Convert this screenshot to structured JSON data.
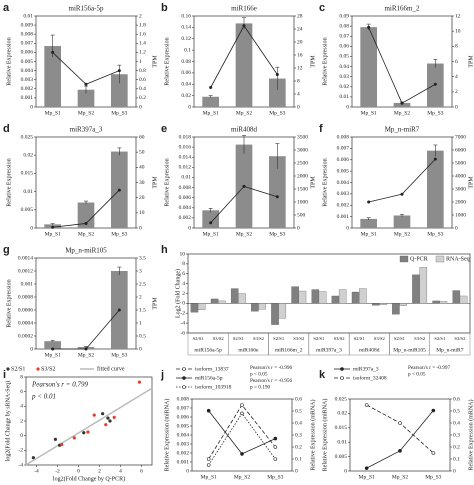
{
  "chart_data": [
    {
      "type": "combo",
      "label": "a",
      "title": "miR156a-5p",
      "ylabel": "Relative Expression",
      "y2label": "TPM",
      "categories": [
        "Mp_S1",
        "Mp_S2",
        "Mp_S3"
      ],
      "bars": {
        "values": [
          0.0067,
          0.0019,
          0.0036
        ],
        "errors": [
          0.0012,
          0.0004,
          0.001
        ],
        "color": "#8c8c8c"
      },
      "line": {
        "values": [
          1.2,
          0.5,
          0.8
        ],
        "color": "#222222",
        "axis": "y2"
      },
      "ylim": [
        0,
        0.01
      ],
      "yticks": [
        0,
        0.001,
        0.002,
        0.003,
        0.004,
        0.005,
        0.006,
        0.007,
        0.008,
        0.009,
        0.01
      ],
      "y2lim": [
        0,
        2
      ],
      "y2ticks": [
        0,
        0.2,
        0.4,
        0.6,
        0.8,
        1,
        1.2,
        1.4,
        1.6,
        1.8,
        2
      ]
    },
    {
      "type": "combo",
      "label": "b",
      "title": "miR166e",
      "ylabel": "Relative Expression",
      "y2label": "TPM",
      "categories": [
        "Mp_S1",
        "Mp_S2",
        "Mp_S3"
      ],
      "bars": {
        "values": [
          0.018,
          0.147,
          0.05
        ],
        "errors": [
          0.002,
          0.01,
          0.02
        ],
        "color": "#8c8c8c"
      },
      "line": {
        "values": [
          6,
          25,
          10
        ],
        "color": "#222222",
        "axis": "y2"
      },
      "ylim": [
        0,
        0.16
      ],
      "yticks": [
        0,
        0.02,
        0.04,
        0.06,
        0.08,
        0.1,
        0.12,
        0.14,
        0.16
      ],
      "y2lim": [
        0,
        28
      ],
      "y2ticks": [
        0,
        4,
        8,
        12,
        16,
        20,
        24,
        28
      ]
    },
    {
      "type": "combo",
      "label": "c",
      "title": "miR166m_2",
      "ylabel": "Relative Expression",
      "y2label": "TPM",
      "categories": [
        "Mp_S1",
        "Mp_S2",
        "Mp_S3"
      ],
      "bars": {
        "values": [
          0.079,
          0.004,
          0.043
        ],
        "errors": [
          0.003,
          0.001,
          0.004
        ],
        "color": "#8c8c8c"
      },
      "line": {
        "values": [
          10.5,
          0.5,
          3
        ],
        "color": "#222222",
        "axis": "y2"
      },
      "ylim": [
        0,
        0.09
      ],
      "yticks": [
        0,
        0.01,
        0.02,
        0.03,
        0.04,
        0.05,
        0.06,
        0.07,
        0.08,
        0.09
      ],
      "y2lim": [
        0,
        12
      ],
      "y2ticks": [
        0,
        2,
        4,
        6,
        8,
        10,
        12
      ]
    },
    {
      "type": "combo",
      "label": "d",
      "title": "miR397a_3",
      "ylabel": "Relative Expression",
      "y2label": "TPM",
      "categories": [
        "Mp_S1",
        "Mp_S2",
        "Mp_S3"
      ],
      "bars": {
        "values": [
          0.001,
          0.007,
          0.021
        ],
        "errors": [
          0.0002,
          0.0004,
          0.001
        ],
        "color": "#8c8c8c"
      },
      "line": {
        "values": [
          0.5,
          3,
          25
        ],
        "color": "#222222",
        "axis": "y2"
      },
      "ylim": [
        0,
        0.025
      ],
      "yticks": [
        0,
        0.005,
        0.01,
        0.015,
        0.02,
        0.025
      ],
      "y2lim": [
        0,
        60
      ],
      "y2ticks": [
        0,
        10,
        20,
        30,
        40,
        50,
        60
      ]
    },
    {
      "type": "combo",
      "label": "e",
      "title": "miR408d",
      "ylabel": "Relative Expression",
      "y2label": "TPM",
      "categories": [
        "Mp_S1",
        "Mp_S2",
        "Mp_S3"
      ],
      "bars": {
        "values": [
          0.0035,
          0.0165,
          0.0142
        ],
        "errors": [
          0.0004,
          0.0018,
          0.0025
        ],
        "color": "#8c8c8c"
      },
      "line": {
        "values": [
          200,
          1600,
          1200
        ],
        "color": "#222222",
        "axis": "y2"
      },
      "ylim": [
        0,
        0.018
      ],
      "yticks": [
        0,
        0.002,
        0.004,
        0.006,
        0.008,
        0.01,
        0.012,
        0.014,
        0.016,
        0.018
      ],
      "y2lim": [
        0,
        3500
      ],
      "y2ticks": [
        0,
        500,
        1000,
        1500,
        2000,
        2500,
        3000,
        3500
      ]
    },
    {
      "type": "combo",
      "label": "f",
      "title": "Mp_n-miR7",
      "ylabel": "Relative Expression",
      "y2label": "TPM",
      "categories": [
        "Mp_S1",
        "Mp_S2",
        "Mp_S3"
      ],
      "bars": {
        "values": [
          0.0008,
          0.0011,
          0.0068
        ],
        "errors": [
          0.0001,
          0.0001,
          0.0005
        ],
        "color": "#8c8c8c"
      },
      "line": {
        "values": [
          2000,
          2600,
          5300
        ],
        "color": "#222222",
        "axis": "y2"
      },
      "ylim": [
        0,
        0.008
      ],
      "yticks": [
        0,
        0.001,
        0.002,
        0.003,
        0.004,
        0.005,
        0.006,
        0.007,
        0.008
      ],
      "y2lim": [
        0,
        7000
      ],
      "y2ticks": [
        0,
        1000,
        2000,
        3000,
        4000,
        5000,
        6000,
        7000
      ]
    },
    {
      "type": "combo",
      "label": "g",
      "title": "Mp_n-miR105",
      "ylabel": "Relative Expression",
      "y2label": "TPM",
      "categories": [
        "Mp_S1",
        "Mp_S2",
        "Mp_S3"
      ],
      "bars": {
        "values": [
          0.00012,
          3e-05,
          0.0012
        ],
        "errors": [
          1e-05,
          1e-05,
          6e-05
        ],
        "color": "#8c8c8c"
      },
      "line": {
        "values": [
          0,
          0,
          1.5
        ],
        "color": "#222222",
        "axis": "y2"
      },
      "ylim": [
        0,
        0.0014
      ],
      "yticks": [
        0,
        0.0002,
        0.0004,
        0.0006,
        0.0008,
        0.001,
        0.0012,
        0.0014
      ],
      "y2lim": [
        0,
        3.5
      ],
      "y2ticks": [
        0,
        0.5,
        1,
        1.5,
        2,
        2.5,
        3,
        3.5
      ]
    },
    {
      "type": "bar",
      "label": "h",
      "ylabel": "Log2 (Fold Change)",
      "categories": [
        "S2/S1",
        "S3/S2",
        "S2/S1",
        "S3/S2",
        "S2/S1",
        "S3/S2",
        "S2/S1",
        "S3/S2",
        "S2/S1",
        "S3/S2",
        "S2/S1",
        "S3/S2",
        "S2/S1",
        "S3/S2"
      ],
      "groups": [
        "miR156a-5p",
        "miR166e",
        "miR166m_2",
        "miR397a_3",
        "miR408d",
        "Mp_n-miR105",
        "Mp_n-miR7"
      ],
      "series": [
        {
          "name": "Q-PCR",
          "color": "#808080",
          "values": [
            -1.8,
            0.9,
            3,
            -1.6,
            -4.3,
            3.4,
            2.8,
            1.5,
            2.3,
            -0.4,
            -2.2,
            5.8,
            0.5,
            2.6
          ]
        },
        {
          "name": "RNA-Seq",
          "color": "#d0d0d0",
          "values": [
            -1.3,
            0.5,
            2,
            -1.2,
            -3,
            2.5,
            2.4,
            2.8,
            3,
            -0.3,
            -0.5,
            7.3,
            0.4,
            1.5
          ]
        }
      ],
      "ylim": [
        -6,
        10
      ],
      "yticks": [
        -6,
        -4,
        -2,
        0,
        2,
        4,
        6,
        8,
        10
      ],
      "legend": "top-right"
    },
    {
      "type": "scatter",
      "label": "i",
      "xlabel": "log2(Fold Change by Q-PCR)",
      "ylabel": "log2(Fold Change by sRNA-Seq)",
      "fit_label": "fitted curve",
      "annotations": [
        "Pearson's r = 0.799",
        "p < 0.01"
      ],
      "series": [
        {
          "name": "S2/S1",
          "color": "#333333",
          "x": [
            -1.8,
            3,
            -4.3,
            2.8,
            2.3,
            -2.2,
            0.5
          ],
          "y": [
            -1.3,
            2,
            -3,
            2.4,
            3,
            -0.5,
            0.4
          ]
        },
        {
          "name": "S3/S2",
          "color": "#e0402a",
          "x": [
            0.9,
            -1.6,
            3.4,
            1.5,
            -0.4,
            5.8,
            2.6
          ],
          "y": [
            0.5,
            -1.2,
            2.5,
            2.8,
            -0.3,
            7.3,
            1.5
          ]
        }
      ],
      "xlim": [
        -5,
        7
      ],
      "xticks": [
        -4,
        -2,
        0,
        2,
        4,
        6
      ],
      "ylim": [
        -4,
        8
      ],
      "yticks": [
        -4,
        -2,
        0,
        2,
        4,
        6,
        8
      ]
    },
    {
      "type": "line",
      "label": "j",
      "ylabel": "Relative Expression (miRNA)",
      "y2label": "Relative Expression (mRNA)",
      "categories": [
        "Mp_S1",
        "Mp_S2",
        "Mp_S3"
      ],
      "annotations": [
        "Pearson's r = -0.996",
        "p < 0.05",
        "Pearson's r = -0.956",
        "p = 0.190"
      ],
      "series": [
        {
          "name": "isoform_13837",
          "color": "#222222",
          "dash": "4 2",
          "axis": "y2",
          "values": [
            0.1,
            0.55,
            0.2
          ]
        },
        {
          "name": "miR156a-5p",
          "color": "#222222",
          "dash": "",
          "axis": "y",
          "values": [
            0.0067,
            0.0019,
            0.0036
          ]
        },
        {
          "name": "isoform_103918",
          "color": "#222222",
          "dash": "1.5 1.5",
          "axis": "y2",
          "values": [
            0.05,
            0.48,
            0.1
          ]
        }
      ],
      "ylim": [
        0,
        0.008
      ],
      "yticks": [
        0,
        0.001,
        0.002,
        0.003,
        0.004,
        0.005,
        0.006,
        0.007,
        0.008
      ],
      "y2lim": [
        0,
        0.6
      ],
      "y2ticks": [
        0,
        0.1,
        0.2,
        0.3,
        0.4,
        0.5,
        0.6
      ]
    },
    {
      "type": "line",
      "label": "k",
      "ylabel": "Relative Expression (miRNA)",
      "y2label": "Relative Expression (mRNA)",
      "categories": [
        "Mp_S1",
        "Mp_S2",
        "Mp_S3"
      ],
      "annotations": [
        "Pearson's r = -0.997",
        "p < 0.05"
      ],
      "series": [
        {
          "name": "miR397a_3",
          "color": "#222222",
          "dash": "",
          "axis": "y",
          "values": [
            0.001,
            0.007,
            0.021
          ]
        },
        {
          "name": "isoform_32408",
          "color": "#222222",
          "dash": "4 2",
          "axis": "y2",
          "values": [
            0.55,
            0.4,
            0.15
          ]
        }
      ],
      "ylim": [
        0,
        0.025
      ],
      "yticks": [
        0,
        0.005,
        0.01,
        0.015,
        0.02,
        0.025
      ],
      "y2lim": [
        0,
        0.6
      ],
      "y2ticks": [
        0,
        0.1,
        0.2,
        0.3,
        0.4,
        0.5,
        0.6
      ]
    }
  ]
}
